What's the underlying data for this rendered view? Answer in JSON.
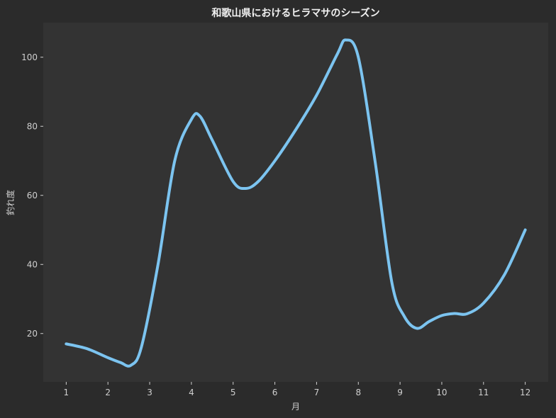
{
  "chart_data": {
    "type": "line",
    "title": "和歌山県におけるヒラマサのシーズン",
    "xlabel": "月",
    "ylabel": "釣れ度",
    "xlim": [
      0.45,
      12.55
    ],
    "ylim": [
      6,
      110
    ],
    "xticks": [
      1,
      2,
      3,
      4,
      5,
      6,
      7,
      8,
      9,
      10,
      11,
      12
    ],
    "yticks": [
      20,
      40,
      60,
      80,
      100
    ],
    "grid": false,
    "series": [
      {
        "color": "#7cc4f0",
        "smooth": true,
        "x": [
          1,
          1.5,
          2,
          2.3,
          2.55,
          2.8,
          3.2,
          3.6,
          4,
          4.2,
          4.5,
          5,
          5.3,
          5.6,
          6,
          6.5,
          7,
          7.5,
          7.7,
          8,
          8.4,
          8.8,
          9.1,
          9.4,
          9.7,
          10,
          10.3,
          10.6,
          11,
          11.5,
          12
        ],
        "y": [
          17,
          15.6,
          13,
          11.6,
          10.8,
          16,
          40,
          70,
          82,
          83,
          76,
          64,
          62,
          64,
          70,
          79,
          89,
          101,
          105,
          100,
          70,
          35,
          25,
          21.5,
          23.5,
          25.2,
          25.8,
          25.7,
          28.8,
          37,
          50
        ]
      }
    ],
    "background": "#333333",
    "figure_background": "#2b2b2b"
  }
}
